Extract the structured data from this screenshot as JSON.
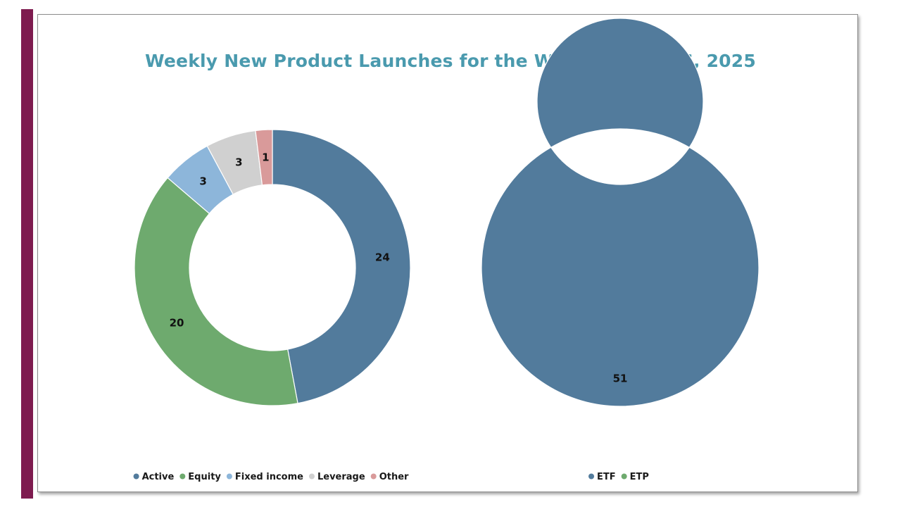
{
  "page": {
    "accent_color": "#7e1b4f"
  },
  "chart_data": [
    {
      "type": "pie",
      "title": "Weekly New Product Launches for the Week of May 26, 2025",
      "style": "donut",
      "categories": [
        "Active",
        "Equity",
        "Fixed income",
        "Leverage",
        "Other"
      ],
      "values": [
        24,
        20,
        3,
        3,
        1
      ],
      "colors": [
        "#527b9c",
        "#6eaa6e",
        "#8db6da",
        "#d0d0d0",
        "#d99a9a"
      ],
      "data_labels": [
        "24",
        "20",
        "3",
        "3",
        "1"
      ],
      "legend": "bottom"
    },
    {
      "type": "pie",
      "style": "donut",
      "categories": [
        "ETF",
        "ETP"
      ],
      "values": [
        51,
        0
      ],
      "colors": [
        "#527b9c",
        "#6eaa6e"
      ],
      "data_labels": [
        "51"
      ],
      "legend": "bottom"
    }
  ]
}
